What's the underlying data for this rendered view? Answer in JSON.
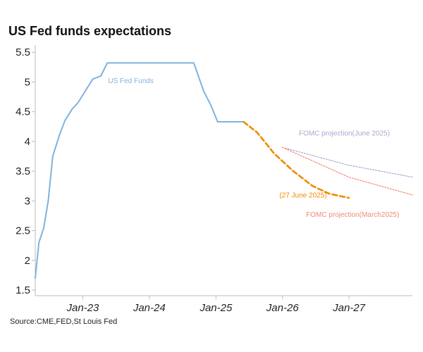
{
  "chart_data": {
    "type": "line",
    "title": "US Fed funds expectations",
    "source": "Source:CME,FED,St Louis Fed",
    "xlabel": "",
    "ylabel": "",
    "x_ticks": [
      "Jan-23",
      "Jan-24",
      "Jan-25",
      "Jan-26",
      "Jan-27"
    ],
    "y_ticks": [
      1.5,
      2,
      2.5,
      3,
      3.5,
      4,
      4.5,
      5,
      5.5
    ],
    "xlim": [
      "2022-04-15",
      "2027-12-15"
    ],
    "ylim": [
      1.5,
      5.55
    ],
    "grid": false,
    "colors": {
      "fed_funds": "#7fb2dd",
      "market": "#f08a00",
      "fomc_june": "#a9a9cf",
      "fomc_march": "#f08a78"
    },
    "series": [
      {
        "name": "US Fed Funds",
        "style": "solid",
        "points": [
          [
            "2022-04-15",
            1.7
          ],
          [
            "2022-05-05",
            2.3
          ],
          [
            "2022-06-01",
            2.55
          ],
          [
            "2022-06-25",
            3.0
          ],
          [
            "2022-07-20",
            3.75
          ],
          [
            "2022-08-25",
            4.1
          ],
          [
            "2022-09-25",
            4.35
          ],
          [
            "2022-11-05",
            4.55
          ],
          [
            "2022-12-05",
            4.65
          ],
          [
            "2023-01-15",
            4.85
          ],
          [
            "2023-02-25",
            5.05
          ],
          [
            "2023-04-10",
            5.1
          ],
          [
            "2023-05-15",
            5.32
          ],
          [
            "2024-09-01",
            5.32
          ],
          [
            "2024-10-25",
            4.85
          ],
          [
            "2024-12-05",
            4.6
          ],
          [
            "2025-01-10",
            4.33
          ],
          [
            "2025-06-01",
            4.33
          ]
        ]
      },
      {
        "name": "(27 June 2025)",
        "style": "dashed",
        "points": [
          [
            "2025-06-01",
            4.33
          ],
          [
            "2025-08-15",
            4.15
          ],
          [
            "2025-11-15",
            3.8
          ],
          [
            "2026-03-01",
            3.5
          ],
          [
            "2026-06-15",
            3.25
          ],
          [
            "2026-09-15",
            3.12
          ],
          [
            "2026-12-31",
            3.05
          ]
        ]
      },
      {
        "name": "FOMC projection(June 2025)",
        "style": "dotted",
        "points": [
          [
            "2025-12-31",
            3.9
          ],
          [
            "2026-12-31",
            3.6
          ],
          [
            "2027-12-15",
            3.4
          ]
        ]
      },
      {
        "name": "FOMC projection(March2025)",
        "style": "dotted",
        "points": [
          [
            "2025-12-31",
            3.9
          ],
          [
            "2026-12-31",
            3.4
          ],
          [
            "2027-12-15",
            3.1
          ]
        ]
      }
    ],
    "annotations": [
      {
        "text": "US Fed Funds",
        "x": "2023-05-20",
        "y": 4.98,
        "color": "#7fb2dd"
      },
      {
        "text": "FOMC projection(June 2025)",
        "x": "2026-04-01",
        "y": 4.1,
        "color": "#a9a9cf"
      },
      {
        "text": "(27 June 2025)",
        "x": "2025-12-15",
        "y": 3.06,
        "color": "#f08a00"
      },
      {
        "text": "FOMC projection(March2025)",
        "x": "2026-05-10",
        "y": 2.73,
        "color": "#f08a78"
      }
    ]
  }
}
